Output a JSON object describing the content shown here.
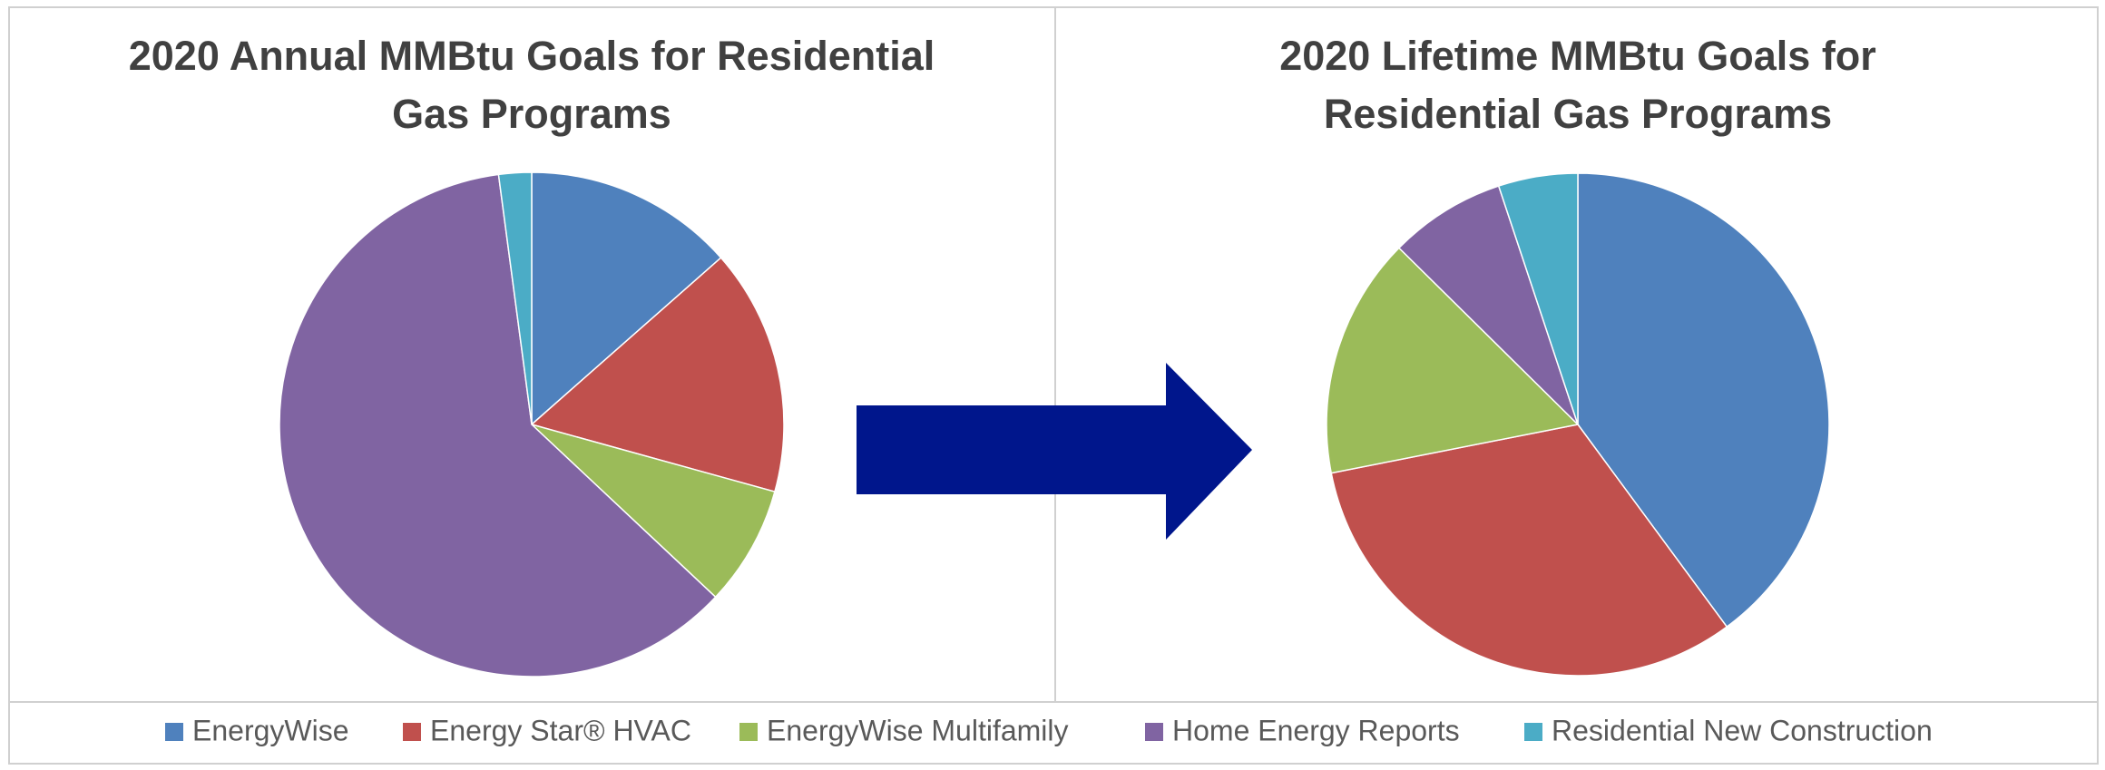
{
  "chart_data": [
    {
      "type": "pie",
      "title": "2020 Annual MMBtu Goals for Residential Gas Programs",
      "categories": [
        "EnergyWise",
        "Energy Star® HVAC",
        "EnergyWise Multifamily",
        "Home Energy Reports",
        "Residential New Construction"
      ],
      "values": [
        13.5,
        15.8,
        7.7,
        60.9,
        2.1
      ],
      "colors": [
        "#4f81bd",
        "#c0504d",
        "#9bbb59",
        "#8064a2",
        "#4bacc6"
      ]
    },
    {
      "type": "pie",
      "title": "2020 Lifetime MMBtu Goals for Residential Gas Programs",
      "categories": [
        "EnergyWise",
        "Energy Star® HVAC",
        "EnergyWise Multifamily",
        "Home Energy Reports",
        "Residential New Construction"
      ],
      "values": [
        39.9,
        32.0,
        15.5,
        7.5,
        5.1
      ],
      "colors": [
        "#4f81bd",
        "#c0504d",
        "#9bbb59",
        "#8064a2",
        "#4bacc6"
      ]
    }
  ]
}
